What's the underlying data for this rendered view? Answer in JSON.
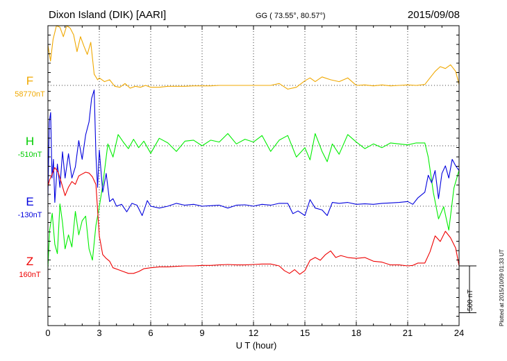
{
  "header": {
    "station": "Dixon Island (DIK)  [AARI]",
    "coords": "GG ( 73.55°,  80.57°)",
    "date": "2015/09/08"
  },
  "footer": {
    "plotted": "Plotted at 2015/10/09 01:33 UT"
  },
  "scale": {
    "label": "500 nT",
    "value_nT": 500
  },
  "chart_data": {
    "type": "line",
    "title": "Dixon Island (DIK)  [AARI]",
    "xlabel": "U T (hour)",
    "ylabel": "",
    "xlim": [
      0,
      24
    ],
    "x_ticks": [
      "0",
      "3",
      "6",
      "9",
      "12",
      "15",
      "18",
      "21",
      "24"
    ],
    "grid": true,
    "unit": "nT",
    "series": [
      {
        "name": "F",
        "baseline_label": "58770nT",
        "baseline": 58770,
        "color": "#f0a800",
        "x": [
          0,
          0.15,
          0.3,
          0.5,
          0.7,
          0.9,
          1.1,
          1.3,
          1.5,
          1.7,
          1.9,
          2.1,
          2.3,
          2.5,
          2.7,
          2.9,
          3.0,
          3.3,
          3.6,
          3.9,
          4.2,
          4.5,
          4.8,
          5.1,
          5.4,
          5.7,
          6.0,
          6.5,
          7,
          7.5,
          8,
          8.5,
          9,
          9.5,
          10,
          11,
          12,
          13,
          13.5,
          14,
          14.5,
          15,
          15.3,
          15.6,
          16,
          16.5,
          17,
          17.5,
          18,
          18.5,
          19,
          19.5,
          20,
          20.5,
          21,
          21.5,
          22,
          22.3,
          22.6,
          22.9,
          23.2,
          23.5,
          23.8,
          24
        ],
        "values": [
          430,
          260,
          490,
          720,
          620,
          520,
          650,
          610,
          540,
          360,
          520,
          420,
          330,
          460,
          120,
          60,
          80,
          40,
          60,
          -10,
          -20,
          20,
          -30,
          -10,
          -20,
          0,
          -20,
          -20,
          -10,
          -10,
          -10,
          -5,
          -5,
          -5,
          0,
          0,
          0,
          0,
          20,
          -40,
          -20,
          50,
          80,
          40,
          90,
          60,
          40,
          80,
          0,
          5,
          -5,
          5,
          -5,
          0,
          5,
          0,
          10,
          80,
          150,
          200,
          180,
          220,
          150,
          10
        ]
      },
      {
        "name": "H",
        "baseline_label": "-510nT",
        "baseline": -510,
        "color": "#00ee00",
        "x": [
          0,
          0.1,
          0.25,
          0.4,
          0.55,
          0.7,
          0.85,
          1.0,
          1.2,
          1.4,
          1.6,
          1.8,
          2.0,
          2.2,
          2.4,
          2.6,
          2.8,
          3.0,
          3.2,
          3.5,
          3.8,
          4.1,
          4.4,
          4.7,
          5.0,
          5.3,
          5.6,
          6,
          6.5,
          7,
          7.5,
          8,
          8.5,
          9,
          9.5,
          10,
          10.5,
          11,
          11.5,
          12,
          12.5,
          13,
          13.5,
          14,
          14.5,
          15,
          15.3,
          15.6,
          16,
          16.3,
          16.6,
          17,
          17.5,
          18,
          18.5,
          19,
          19.5,
          20,
          20.5,
          21,
          21.5,
          22,
          22.2,
          22.5,
          22.8,
          23.1,
          23.4,
          23.7,
          24
        ],
        "values": [
          -1300,
          -900,
          -720,
          -1050,
          -1150,
          -620,
          -820,
          -1100,
          -950,
          -1080,
          -700,
          -950,
          -800,
          -750,
          -1100,
          -1220,
          -850,
          -650,
          -420,
          20,
          -120,
          120,
          40,
          -30,
          70,
          -20,
          50,
          -80,
          80,
          30,
          -60,
          50,
          60,
          0,
          60,
          40,
          130,
          20,
          70,
          40,
          110,
          -60,
          60,
          110,
          -120,
          -20,
          -150,
          130,
          -60,
          -170,
          20,
          -90,
          120,
          40,
          -30,
          20,
          -20,
          30,
          20,
          10,
          30,
          30,
          -120,
          -500,
          -780,
          -650,
          -900,
          -450,
          -260
        ]
      },
      {
        "name": "E",
        "baseline_label": "-130nT",
        "baseline": -130,
        "color": "#0000dd",
        "x": [
          0,
          0.08,
          0.16,
          0.24,
          0.32,
          0.4,
          0.55,
          0.7,
          0.85,
          1.0,
          1.2,
          1.4,
          1.6,
          1.8,
          2.0,
          2.2,
          2.4,
          2.55,
          2.7,
          2.8,
          2.9,
          3.0,
          3.2,
          3.4,
          3.6,
          3.8,
          4.0,
          4.3,
          4.6,
          4.9,
          5.2,
          5.5,
          5.8,
          6.0,
          6.5,
          7,
          7.5,
          8,
          8.5,
          9,
          9.5,
          10,
          10.5,
          11,
          11.5,
          12,
          12.5,
          13,
          13.5,
          14,
          14.3,
          14.6,
          15,
          15.3,
          15.6,
          16,
          16.3,
          16.6,
          17,
          17.5,
          18,
          18.5,
          19,
          19.5,
          20,
          20.5,
          21,
          21.3,
          21.6,
          22,
          22.2,
          22.4,
          22.6,
          22.8,
          23.0,
          23.2,
          23.4,
          23.6,
          23.8,
          24
        ],
        "values": [
          100,
          900,
          1000,
          300,
          500,
          40,
          450,
          200,
          580,
          300,
          560,
          300,
          420,
          700,
          500,
          760,
          900,
          1150,
          1240,
          550,
          200,
          600,
          150,
          350,
          50,
          80,
          0,
          20,
          -60,
          30,
          10,
          -100,
          60,
          0,
          -20,
          0,
          30,
          10,
          20,
          0,
          5,
          10,
          -20,
          10,
          15,
          0,
          20,
          10,
          30,
          30,
          -80,
          -50,
          -100,
          70,
          -20,
          -40,
          -100,
          40,
          30,
          40,
          20,
          25,
          20,
          30,
          35,
          40,
          50,
          20,
          90,
          150,
          330,
          250,
          380,
          80,
          350,
          430,
          300,
          500,
          430,
          380
        ]
      },
      {
        "name": "Z",
        "baseline_label": "160nT",
        "baseline": 160,
        "color": "#ee0000",
        "x": [
          0,
          0.1,
          0.25,
          0.4,
          0.6,
          0.8,
          1.0,
          1.2,
          1.4,
          1.6,
          1.8,
          2.0,
          2.2,
          2.4,
          2.6,
          2.8,
          3.0,
          3.2,
          3.4,
          3.6,
          3.8,
          4.1,
          4.4,
          4.7,
          5.0,
          5.3,
          5.6,
          6.0,
          6.5,
          7,
          7.5,
          8,
          8.5,
          9,
          9.5,
          10,
          10.5,
          11,
          11.5,
          12,
          12.5,
          13,
          13.5,
          13.8,
          14.1,
          14.4,
          14.7,
          15,
          15.3,
          15.6,
          15.9,
          16.2,
          16.5,
          16.8,
          17.1,
          17.5,
          18,
          18.5,
          19,
          19.5,
          20,
          20.5,
          21,
          21.3,
          21.6,
          22,
          22.3,
          22.6,
          22.9,
          23.2,
          23.5,
          23.8,
          24
        ],
        "values": [
          850,
          920,
          980,
          1050,
          1000,
          880,
          750,
          840,
          900,
          870,
          960,
          980,
          1000,
          990,
          950,
          870,
          320,
          120,
          80,
          50,
          -20,
          -40,
          -60,
          -80,
          -80,
          -60,
          -30,
          -20,
          -10,
          -10,
          -5,
          0,
          0,
          5,
          5,
          10,
          15,
          10,
          10,
          15,
          20,
          20,
          0,
          -50,
          -80,
          -40,
          -90,
          -50,
          60,
          90,
          60,
          120,
          160,
          90,
          110,
          90,
          80,
          90,
          50,
          40,
          10,
          10,
          0,
          5,
          30,
          30,
          150,
          320,
          260,
          370,
          300,
          190,
          0
        ]
      }
    ]
  }
}
